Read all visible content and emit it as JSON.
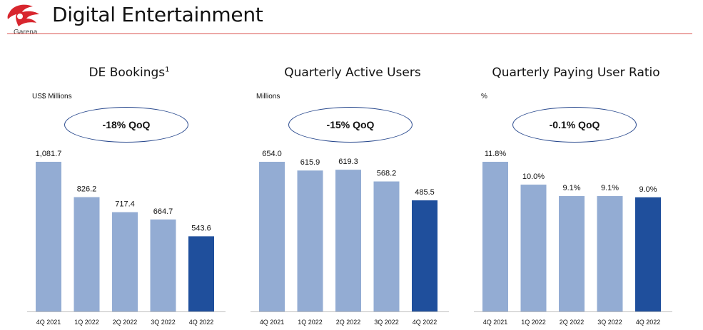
{
  "header": {
    "title": "Digital Entertainment",
    "logo_text": "Garena",
    "logo_icon": "garena-dragon-icon",
    "accent_color": "#d9534f"
  },
  "chart_data": [
    {
      "type": "bar",
      "title": "DE Bookings",
      "title_footnote": "1",
      "unit_label": "US$ Millions",
      "badge": "-18% QoQ",
      "categories": [
        "4Q 2021",
        "1Q 2022",
        "2Q 2022",
        "3Q 2022",
        "4Q 2022"
      ],
      "values": [
        1081.7,
        826.2,
        717.4,
        664.7,
        543.6
      ],
      "value_labels": [
        "1,081.7",
        "826.2",
        "717.4",
        "664.7",
        "543.6"
      ],
      "ylim": [
        0,
        1081.7
      ],
      "colors": [
        "#93acd3",
        "#93acd3",
        "#93acd3",
        "#93acd3",
        "#1f4f9c"
      ]
    },
    {
      "type": "bar",
      "title": "Quarterly Active Users",
      "unit_label": "Millions",
      "badge": "-15% QoQ",
      "categories": [
        "4Q 2021",
        "1Q 2022",
        "2Q 2022",
        "3Q 2022",
        "4Q 2022"
      ],
      "values": [
        654.0,
        615.9,
        619.3,
        568.2,
        485.5
      ],
      "value_labels": [
        "654.0",
        "615.9",
        "619.3",
        "568.2",
        "485.5"
      ],
      "ylim": [
        0,
        654.0
      ],
      "colors": [
        "#93acd3",
        "#93acd3",
        "#93acd3",
        "#93acd3",
        "#1f4f9c"
      ]
    },
    {
      "type": "bar",
      "title": "Quarterly Paying User Ratio",
      "unit_label": "%",
      "badge": "-0.1% QoQ",
      "categories": [
        "4Q 2021",
        "1Q 2022",
        "2Q 2022",
        "3Q 2022",
        "4Q 2022"
      ],
      "values": [
        11.8,
        10.0,
        9.1,
        9.1,
        9.0
      ],
      "value_labels": [
        "11.8%",
        "10.0%",
        "9.1%",
        "9.1%",
        "9.0%"
      ],
      "ylim": [
        0,
        11.8
      ],
      "colors": [
        "#93acd3",
        "#93acd3",
        "#93acd3",
        "#93acd3",
        "#1f4f9c"
      ]
    }
  ]
}
